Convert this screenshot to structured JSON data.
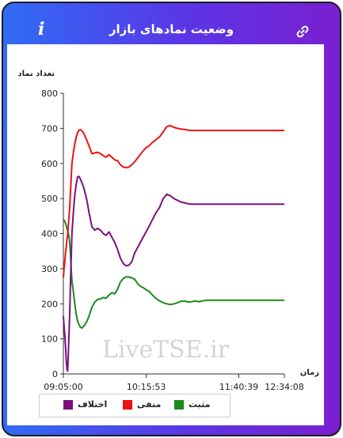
{
  "header": {
    "title": "وضعیت نمادهای بازار",
    "info_icon": "i",
    "link_icon": "link-icon"
  },
  "watermark": "LiveTSE.ir",
  "chart_data": {
    "type": "line",
    "ylabel": "تعداد نماد",
    "xlabel": "زمان",
    "ylim": [
      0,
      800
    ],
    "yticks": [
      0,
      100,
      200,
      300,
      400,
      500,
      600,
      700,
      800
    ],
    "xticks": [
      "09:05:00",
      "10:15:53",
      "11:40:39",
      "12:34:08"
    ],
    "grid": false,
    "legend_position": "bottom",
    "x": [
      0,
      1,
      2,
      3,
      4,
      5,
      6,
      7,
      8,
      9,
      10,
      11,
      12,
      14,
      16,
      18,
      20,
      22,
      24,
      26,
      28,
      30,
      33,
      36,
      40,
      44,
      48,
      52,
      56,
      60,
      64,
      68,
      72,
      76,
      80,
      84,
      88,
      92,
      96,
      100,
      104,
      108,
      112,
      116,
      120,
      125,
      130,
      135,
      140,
      145,
      150,
      155,
      160,
      165,
      170,
      175,
      180,
      185,
      190,
      195,
      200,
      210,
      220,
      230,
      240,
      250,
      260,
      270,
      280,
      290,
      300,
      305,
      310
    ],
    "series": [
      {
        "name": "مثبت",
        "color": "#1a8a1a",
        "values": [
          440,
          438,
          434,
          430,
          422,
          415,
          408,
          400,
          390,
          370,
          340,
          300,
          265,
          235,
          200,
          170,
          150,
          140,
          133,
          131,
          135,
          140,
          150,
          165,
          190,
          205,
          212,
          214,
          218,
          216,
          225,
          232,
          228,
          242,
          262,
          272,
          277,
          276,
          274,
          270,
          258,
          250,
          246,
          240,
          236,
          225,
          215,
          208,
          203,
          200,
          198,
          200,
          203,
          207,
          208,
          205,
          206,
          208,
          206,
          208,
          210,
          210,
          210,
          210,
          210,
          210,
          210,
          210,
          210,
          210,
          210,
          210,
          210
        ]
      },
      {
        "name": "منفی",
        "color": "#ee1111",
        "values": [
          275,
          300,
          320,
          345,
          360,
          385,
          395,
          425,
          450,
          480,
          520,
          560,
          600,
          630,
          655,
          675,
          688,
          695,
          696,
          693,
          688,
          680,
          665,
          650,
          628,
          630,
          632,
          628,
          622,
          618,
          625,
          618,
          610,
          608,
          596,
          590,
          588,
          590,
          596,
          605,
          615,
          626,
          636,
          645,
          650,
          660,
          668,
          676,
          690,
          705,
          708,
          703,
          700,
          698,
          697,
          695,
          694,
          694,
          694,
          694,
          694,
          694,
          694,
          694,
          694,
          694,
          694,
          694,
          694,
          694,
          694,
          694,
          694
        ]
      },
      {
        "name": "اختلاف",
        "color": "#7a1080",
        "values": [
          165,
          135,
          110,
          80,
          40,
          15,
          8,
          60,
          120,
          180,
          260,
          330,
          400,
          460,
          510,
          540,
          562,
          563,
          555,
          545,
          535,
          520,
          495,
          460,
          420,
          410,
          415,
          410,
          400,
          395,
          405,
          390,
          375,
          355,
          330,
          315,
          308,
          310,
          320,
          345,
          360,
          375,
          390,
          405,
          420,
          440,
          460,
          475,
          500,
          512,
          508,
          500,
          495,
          490,
          488,
          485,
          484,
          484,
          484,
          484,
          484,
          484,
          484,
          484,
          484,
          484,
          484,
          484,
          484,
          484,
          484,
          484,
          484
        ]
      }
    ]
  }
}
